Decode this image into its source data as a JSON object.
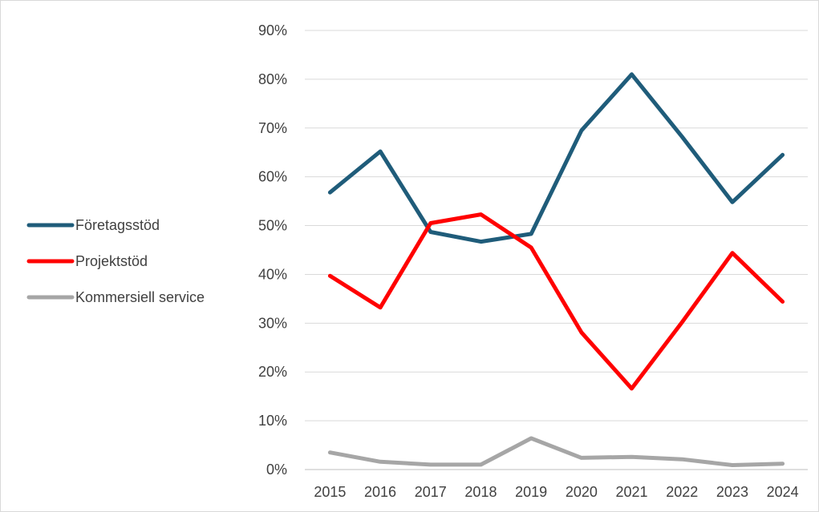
{
  "chart_data": {
    "type": "line",
    "title": "",
    "xlabel": "",
    "ylabel": "",
    "categories": [
      "2015",
      "2016",
      "2017",
      "2018",
      "2019",
      "2020",
      "2021",
      "2022",
      "2023",
      "2024"
    ],
    "y_ticks": [
      "0%",
      "10%",
      "20%",
      "30%",
      "40%",
      "50%",
      "60%",
      "70%",
      "80%",
      "90%"
    ],
    "ylim": [
      0,
      90
    ],
    "grid": true,
    "legend_position": "left",
    "series": [
      {
        "name": "Företagsstöd",
        "color": "#1f5c7a",
        "values": [
          56.8,
          65.2,
          48.7,
          46.7,
          48.3,
          69.5,
          81.0,
          68.2,
          54.8,
          64.5
        ]
      },
      {
        "name": "Projektstöd",
        "color": "#ff0000",
        "values": [
          39.7,
          33.2,
          50.5,
          52.3,
          45.5,
          28.1,
          16.6,
          30.2,
          44.4,
          34.4
        ]
      },
      {
        "name": "Kommersiell service",
        "color": "#a6a6a6",
        "values": [
          3.5,
          1.6,
          1.0,
          1.0,
          6.4,
          2.4,
          2.6,
          2.1,
          0.9,
          1.2
        ]
      }
    ]
  }
}
